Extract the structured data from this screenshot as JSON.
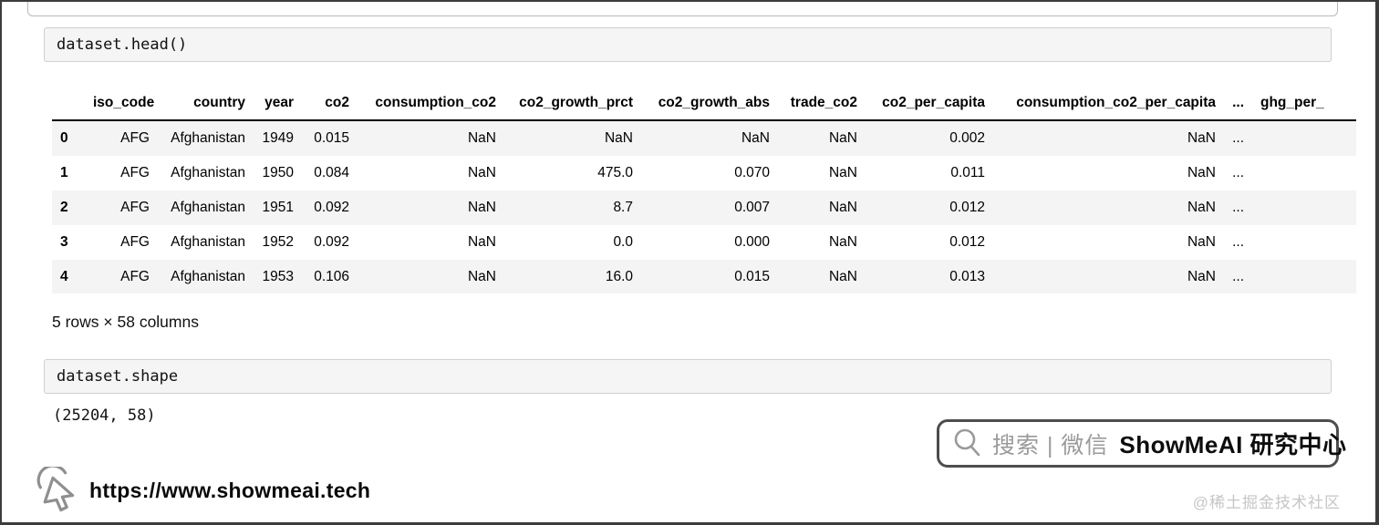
{
  "notebook": {
    "cell1_code": "dataset.head()",
    "table": {
      "columns": [
        "",
        "iso_code",
        "country",
        "year",
        "co2",
        "consumption_co2",
        "co2_growth_prct",
        "co2_growth_abs",
        "trade_co2",
        "co2_per_capita",
        "consumption_co2_per_capita",
        "...",
        "ghg_per_"
      ],
      "rows": [
        [
          "0",
          "AFG",
          "Afghanistan",
          "1949",
          "0.015",
          "NaN",
          "NaN",
          "NaN",
          "NaN",
          "0.002",
          "NaN",
          "...",
          ""
        ],
        [
          "1",
          "AFG",
          "Afghanistan",
          "1950",
          "0.084",
          "NaN",
          "475.0",
          "0.070",
          "NaN",
          "0.011",
          "NaN",
          "...",
          ""
        ],
        [
          "2",
          "AFG",
          "Afghanistan",
          "1951",
          "0.092",
          "NaN",
          "8.7",
          "0.007",
          "NaN",
          "0.012",
          "NaN",
          "...",
          ""
        ],
        [
          "3",
          "AFG",
          "Afghanistan",
          "1952",
          "0.092",
          "NaN",
          "0.0",
          "0.000",
          "NaN",
          "0.012",
          "NaN",
          "...",
          ""
        ],
        [
          "4",
          "AFG",
          "Afghanistan",
          "1953",
          "0.106",
          "NaN",
          "16.0",
          "0.015",
          "NaN",
          "0.013",
          "NaN",
          "...",
          ""
        ]
      ],
      "summary": "5 rows × 58 columns"
    },
    "cell2_code": "dataset.shape",
    "cell2_output": "(25204, 58)"
  },
  "watermarks": {
    "search_box": {
      "icon": "magnifier-icon",
      "prefix": "搜索 | 微信",
      "brand": "ShowMeAI 研究中心"
    },
    "site": {
      "icon": "cursor-logo-icon",
      "url": "https://www.showmeai.tech"
    },
    "community": "@稀土掘金技术社区"
  },
  "colors": {
    "code_cell_bg": "#f5f5f5",
    "code_cell_border": "#cfcfcf",
    "row_stripe": "#f4f4f4",
    "header_rule": "#000000",
    "watermark_gray": "#9a9a9a",
    "frame_border": "#3c3c3c"
  }
}
